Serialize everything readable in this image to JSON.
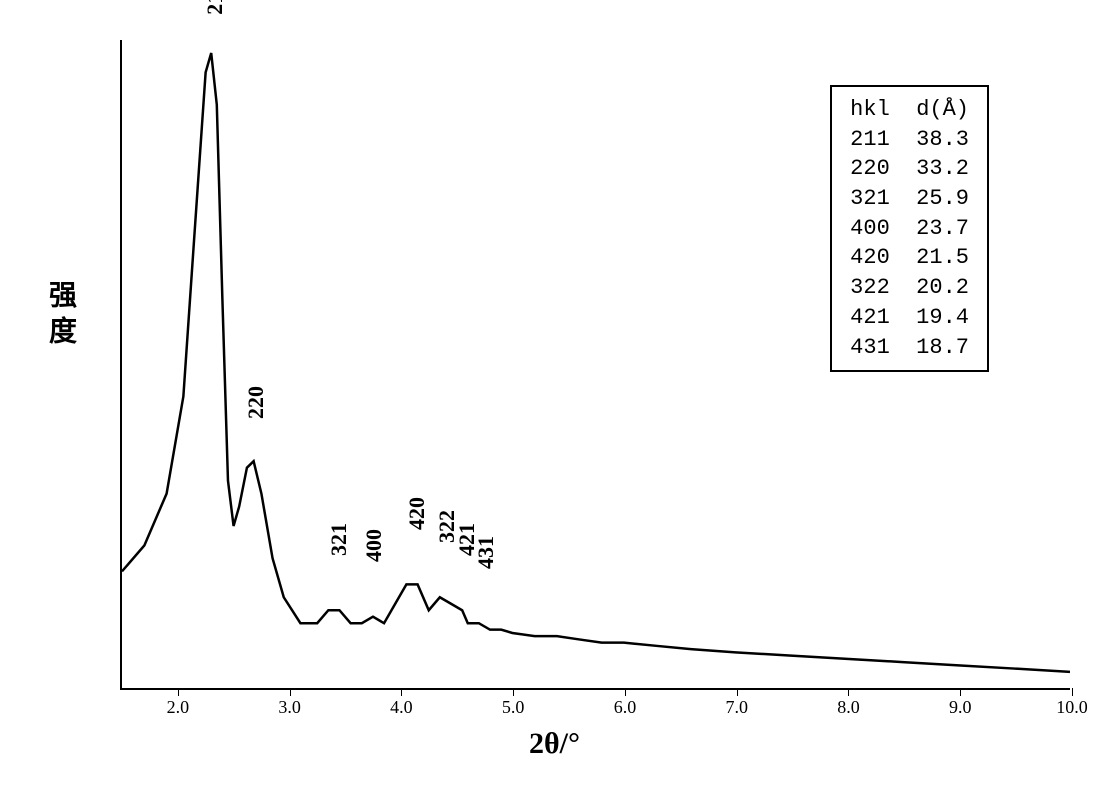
{
  "chart": {
    "type": "line",
    "background_color": "#ffffff",
    "line_color": "#000000",
    "line_width": 2.5,
    "border_color": "#000000",
    "x_label": "2θ/°",
    "y_label": "强度",
    "x_axis": {
      "ticks": [
        2.0,
        3.0,
        4.0,
        5.0,
        6.0,
        7.0,
        8.0,
        9.0,
        10.0
      ],
      "tick_labels": [
        "2.0",
        "3.0",
        "4.0",
        "5.0",
        "6.0",
        "7.0",
        "8.0",
        "9.0",
        "10.0"
      ],
      "xlim": [
        1.5,
        10.0
      ],
      "label_fontsize": 18
    },
    "y_axis": {
      "show_ticks": false,
      "ylim": [
        0,
        100
      ]
    },
    "peaks": [
      {
        "hkl": "211",
        "two_theta": 2.3,
        "d_spacing": 38.3,
        "intensity": 98
      },
      {
        "hkl": "220",
        "two_theta": 2.66,
        "d_spacing": 33.2,
        "intensity": 35
      },
      {
        "hkl": "321",
        "two_theta": 3.41,
        "d_spacing": 25.9,
        "intensity": 12
      },
      {
        "hkl": "400",
        "two_theta": 3.72,
        "d_spacing": 23.7,
        "intensity": 11
      },
      {
        "hkl": "420",
        "two_theta": 4.1,
        "d_spacing": 21.5,
        "intensity": 16
      },
      {
        "hkl": "322",
        "two_theta": 4.37,
        "d_spacing": 20.2,
        "intensity": 14
      },
      {
        "hkl": "421",
        "two_theta": 4.55,
        "d_spacing": 19.4,
        "intensity": 12
      },
      {
        "hkl": "431",
        "two_theta": 4.72,
        "d_spacing": 18.7,
        "intensity": 10
      }
    ],
    "peak_label_fontsize": 22,
    "legend": {
      "header_hkl": "hkl",
      "header_d": "d(Å)",
      "fontsize": 22,
      "border_color": "#000000",
      "position": "top-right"
    },
    "curve_points": [
      [
        1.5,
        18
      ],
      [
        1.7,
        22
      ],
      [
        1.9,
        30
      ],
      [
        2.05,
        45
      ],
      [
        2.15,
        70
      ],
      [
        2.25,
        95
      ],
      [
        2.3,
        98
      ],
      [
        2.35,
        90
      ],
      [
        2.4,
        60
      ],
      [
        2.45,
        32
      ],
      [
        2.5,
        25
      ],
      [
        2.55,
        28
      ],
      [
        2.62,
        34
      ],
      [
        2.68,
        35
      ],
      [
        2.75,
        30
      ],
      [
        2.85,
        20
      ],
      [
        2.95,
        14
      ],
      [
        3.1,
        10
      ],
      [
        3.25,
        10
      ],
      [
        3.35,
        12
      ],
      [
        3.45,
        12
      ],
      [
        3.55,
        10
      ],
      [
        3.65,
        10
      ],
      [
        3.75,
        11
      ],
      [
        3.85,
        10
      ],
      [
        3.95,
        13
      ],
      [
        4.05,
        16
      ],
      [
        4.15,
        16
      ],
      [
        4.25,
        12
      ],
      [
        4.35,
        14
      ],
      [
        4.45,
        13
      ],
      [
        4.55,
        12
      ],
      [
        4.6,
        10
      ],
      [
        4.7,
        10
      ],
      [
        4.8,
        9
      ],
      [
        4.9,
        9
      ],
      [
        5.0,
        8.5
      ],
      [
        5.2,
        8
      ],
      [
        5.4,
        8
      ],
      [
        5.6,
        7.5
      ],
      [
        5.8,
        7
      ],
      [
        6.0,
        7
      ],
      [
        6.3,
        6.5
      ],
      [
        6.6,
        6
      ],
      [
        7.0,
        5.5
      ],
      [
        7.5,
        5
      ],
      [
        8.0,
        4.5
      ],
      [
        8.5,
        4
      ],
      [
        9.0,
        3.5
      ],
      [
        9.5,
        3
      ],
      [
        10.0,
        2.5
      ]
    ]
  }
}
